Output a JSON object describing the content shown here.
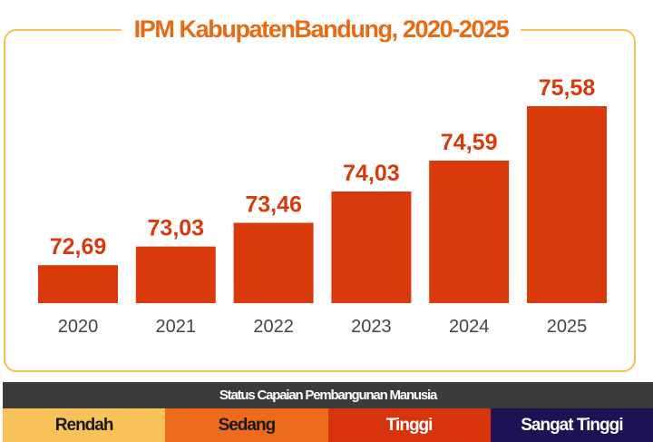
{
  "chart_data": {
    "type": "bar",
    "title": "IPM KabupatenBandung, 2020-2025",
    "categories": [
      "2020",
      "2021",
      "2022",
      "2023",
      "2024",
      "2025"
    ],
    "values": [
      72.69,
      73.03,
      73.46,
      74.03,
      74.59,
      75.58
    ],
    "value_labels": [
      "72,69",
      "73,03",
      "73,46",
      "74,03",
      "74,59",
      "75,58"
    ],
    "ylim": [
      72.0,
      75.58
    ],
    "bar_color": "#d93a0c",
    "label_color": "#d93a0c",
    "title_color": "#e86b14",
    "frame_color": "#f3c15a",
    "grid": false,
    "legend": "bottom"
  },
  "status_legend": {
    "title": "Status Capaian Pembangunan Manusia",
    "title_bg": "#3b3b3b",
    "items": [
      {
        "label": "Rendah",
        "bg": "#f7c25a",
        "color": "#1a1a1a"
      },
      {
        "label": "Sedang",
        "bg": "#ee6a1c",
        "color": "#1a1a1a"
      },
      {
        "label": "Tinggi",
        "bg": "#d7340d",
        "color": "#ffffff"
      },
      {
        "label": "Sangat Tinggi",
        "bg": "#1c1452",
        "color": "#ffffff"
      }
    ]
  }
}
